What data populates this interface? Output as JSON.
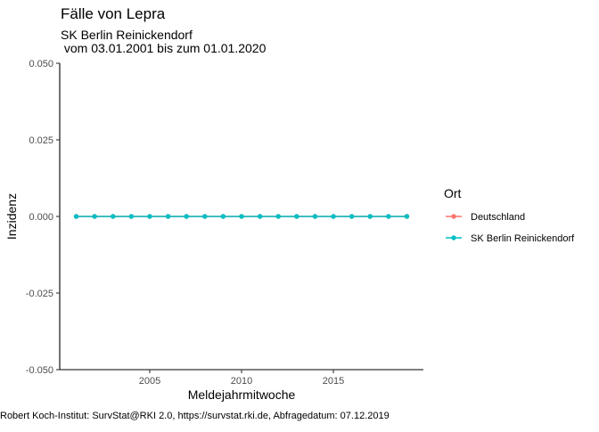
{
  "chart_data": {
    "type": "line",
    "title": "Fälle von Lepra",
    "subtitle_line1": "SK Berlin Reinickendorf",
    "subtitle_line2": " vom 03.01.2001 bis zum 01.01.2020",
    "xlabel": "Meldejahrmitwoche",
    "ylabel": "Inzidenz",
    "caption": "Robert Koch-Institut: SurvStat@RKI 2.0, https://survstat.rki.de, Abfragedatum: 07.12.2019",
    "xlim": [
      2000.1,
      2019.9
    ],
    "ylim": [
      -0.05,
      0.05
    ],
    "x_ticks": [
      2005,
      2010,
      2015
    ],
    "x_tick_labels": [
      "2005",
      "2010",
      "2015"
    ],
    "y_ticks": [
      -0.05,
      -0.025,
      0,
      0.025,
      0.05
    ],
    "y_tick_labels": [
      "-0.050",
      "-0.025",
      "0.000",
      "0.025",
      "0.050"
    ],
    "grid": false,
    "legend": {
      "title": "Ort",
      "position": "right"
    },
    "x": [
      2001,
      2002,
      2003,
      2004,
      2005,
      2006,
      2007,
      2008,
      2009,
      2010,
      2011,
      2012,
      2013,
      2014,
      2015,
      2016,
      2017,
      2018,
      2019
    ],
    "series": [
      {
        "name": "Deutschland",
        "color": "#F8766D",
        "values": [
          0,
          0,
          0,
          0,
          0,
          0,
          0,
          0,
          0,
          0,
          0,
          0,
          0,
          0,
          0,
          0,
          0,
          0,
          0
        ]
      },
      {
        "name": "SK Berlin Reinickendorf",
        "color": "#00BFC4",
        "values": [
          0,
          0,
          0,
          0,
          0,
          0,
          0,
          0,
          0,
          0,
          0,
          0,
          0,
          0,
          0,
          0,
          0,
          0,
          0
        ]
      }
    ]
  }
}
